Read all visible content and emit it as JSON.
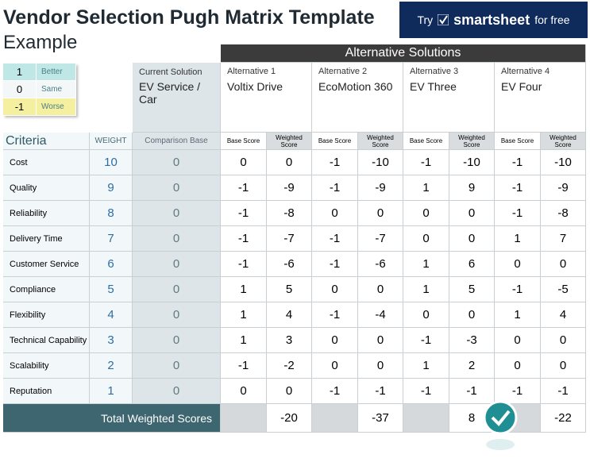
{
  "header": {
    "title": "Vendor Selection Pugh Matrix Template",
    "subtitle": "Example"
  },
  "banner": {
    "try": "Try",
    "brand": "smartsheet",
    "suffix": "for free"
  },
  "legend": [
    {
      "value": 1,
      "label": "Better"
    },
    {
      "value": 0,
      "label": "Same"
    },
    {
      "value": -1,
      "label": "Worse"
    }
  ],
  "table": {
    "criteria_label": "Criteria",
    "weight_label": "WEIGHT",
    "current": {
      "header": "Current Solution",
      "name": "EV Service / Car",
      "base_label": "Comparison Base"
    },
    "alternatives_title": "Alternative Solutions",
    "base_score_label": "Base Score",
    "weighted_score_label": "Weighted Score",
    "alternatives": [
      {
        "label": "Alternative 1",
        "name": "Voltix Drive"
      },
      {
        "label": "Alternative 2",
        "name": "EcoMotion 360"
      },
      {
        "label": "Alternative 3",
        "name": "EV Three"
      },
      {
        "label": "Alternative 4",
        "name": "EV Four"
      }
    ],
    "rows": [
      {
        "criterion": "Cost",
        "weight": 10,
        "current": 0,
        "scores": [
          [
            0,
            0
          ],
          [
            -1,
            -10
          ],
          [
            -1,
            -10
          ],
          [
            -1,
            -10
          ]
        ]
      },
      {
        "criterion": "Quality",
        "weight": 9,
        "current": 0,
        "scores": [
          [
            -1,
            -9
          ],
          [
            -1,
            -9
          ],
          [
            1,
            9
          ],
          [
            -1,
            -9
          ]
        ]
      },
      {
        "criterion": "Reliability",
        "weight": 8,
        "current": 0,
        "scores": [
          [
            -1,
            -8
          ],
          [
            0,
            0
          ],
          [
            0,
            0
          ],
          [
            -1,
            -8
          ]
        ]
      },
      {
        "criterion": "Delivery Time",
        "weight": 7,
        "current": 0,
        "scores": [
          [
            -1,
            -7
          ],
          [
            -1,
            -7
          ],
          [
            0,
            0
          ],
          [
            1,
            7
          ]
        ]
      },
      {
        "criterion": "Customer Service",
        "weight": 6,
        "current": 0,
        "scores": [
          [
            -1,
            -6
          ],
          [
            -1,
            -6
          ],
          [
            1,
            6
          ],
          [
            0,
            0
          ]
        ]
      },
      {
        "criterion": "Compliance",
        "weight": 5,
        "current": 0,
        "scores": [
          [
            1,
            5
          ],
          [
            0,
            0
          ],
          [
            1,
            5
          ],
          [
            -1,
            -5
          ]
        ]
      },
      {
        "criterion": "Flexibility",
        "weight": 4,
        "current": 0,
        "scores": [
          [
            1,
            4
          ],
          [
            -1,
            -4
          ],
          [
            0,
            0
          ],
          [
            1,
            4
          ]
        ]
      },
      {
        "criterion": "Technical Capability",
        "weight": 3,
        "current": 0,
        "scores": [
          [
            1,
            3
          ],
          [
            0,
            0
          ],
          [
            -1,
            -3
          ],
          [
            0,
            0
          ]
        ]
      },
      {
        "criterion": "Scalability",
        "weight": 2,
        "current": 0,
        "scores": [
          [
            -1,
            -2
          ],
          [
            0,
            0
          ],
          [
            1,
            2
          ],
          [
            0,
            0
          ]
        ]
      },
      {
        "criterion": "Reputation",
        "weight": 1,
        "current": 0,
        "scores": [
          [
            0,
            0
          ],
          [
            -1,
            -1
          ],
          [
            -1,
            -1
          ],
          [
            -1,
            -1
          ]
        ]
      }
    ],
    "totals_label": "Total Weighted Scores",
    "totals": [
      -20,
      -37,
      8,
      -22
    ]
  }
}
